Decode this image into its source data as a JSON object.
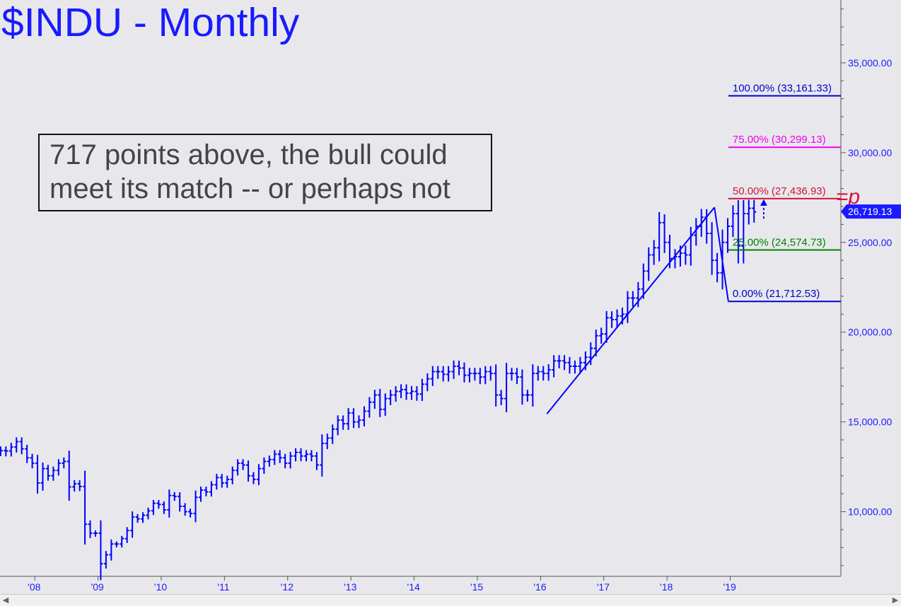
{
  "title": "$INDU - Monthly",
  "annotation": {
    "line1": "717 points above, the bull could",
    "line2": "meet its match -- or perhaps not"
  },
  "chart_data": {
    "type": "ohlc",
    "ylim": [
      6400,
      38500
    ],
    "yticks": [
      10000,
      15000,
      20000,
      25000,
      30000,
      35000
    ],
    "ytick_labels": [
      "10,000.00",
      "15,000.00",
      "20,000.00",
      "25,000.00",
      "30,000.00",
      "35,000.00"
    ],
    "xticks": [
      2008,
      2009,
      2010,
      2011,
      2012,
      2013,
      2014,
      2015,
      2016,
      2017,
      2018,
      2019
    ],
    "xtick_labels": [
      "'08",
      "'09",
      "'10",
      "'11",
      "'12",
      "'13",
      "'14",
      "'15",
      "'16",
      "'17",
      "'18",
      "'19"
    ],
    "xlim": [
      2007.45,
      2020.75
    ],
    "last_price_label": "26,719.13",
    "last_price": 26719.13,
    "colors": {
      "bars": "#0000ff",
      "axis": "#1a1aff",
      "tag_bg": "#1a1aff"
    },
    "closes": [
      13400,
      13380,
      13600,
      13900,
      13500,
      13000,
      12700,
      11600,
      12400,
      12000,
      12300,
      12700,
      12800,
      11380,
      11550,
      11400,
      9300,
      8800,
      8800,
      7100,
      7600,
      8200,
      8200,
      8500,
      8950,
      9700,
      9600,
      9800,
      10050,
      10470,
      10400,
      10100,
      10900,
      10850,
      10300,
      10000,
      9900,
      10800,
      11200,
      11100,
      11500,
      11900,
      11600,
      11800,
      12300,
      12700,
      12600,
      12000,
      11800,
      12400,
      12800,
      12900,
      13200,
      13000,
      12700,
      13100,
      13300,
      13100,
      13200,
      13100,
      12600,
      13800,
      14100,
      14600,
      15100,
      14900,
      15500,
      15000,
      15100,
      15600,
      16100,
      16500,
      15700,
      16300,
      16500,
      16700,
      16800,
      16600,
      16700,
      16550,
      17100,
      17400,
      17800,
      17800,
      17650,
      17800,
      18100,
      18000,
      17600,
      17700,
      17700,
      17500,
      17800,
      17700,
      16500,
      16300,
      17700,
      17700,
      17500,
      16500,
      16500,
      17700,
      17800,
      17700,
      17900,
      18400,
      18400,
      18300,
      18100,
      18100,
      18300,
      18600,
      19100,
      19800,
      19900,
      20800,
      20700,
      20900,
      21000,
      21900,
      21900,
      22400,
      23400,
      24300,
      24700,
      26100,
      25000,
      24100,
      24200,
      24400,
      24300,
      25400,
      25900,
      26400,
      25500,
      24000,
      23300,
      25000,
      25900,
      26600,
      24800,
      26600,
      26900,
      26700
    ],
    "fibonacci": [
      {
        "label": "100.00% (33,161.33)",
        "value": 33161.33,
        "color": "#0000cc"
      },
      {
        "label": "75.00% (30,299.13)",
        "value": 30299.13,
        "color": "#ee00ee"
      },
      {
        "label": "50.00% (27,436.93)",
        "value": 27436.93,
        "color": "#d4143c",
        "tag": "=p"
      },
      {
        "label": "25.00% (24,574.73)",
        "value": 24574.73,
        "color": "#008000"
      },
      {
        "label": "0.00% (21,712.53)",
        "value": 21712.53,
        "color": "#0000cc"
      }
    ],
    "pattern_points": [
      {
        "x": 2016.1,
        "y": 15450
      },
      {
        "x": 2018.75,
        "y": 26950
      },
      {
        "x": 2018.97,
        "y": 21712.53
      }
    ]
  }
}
